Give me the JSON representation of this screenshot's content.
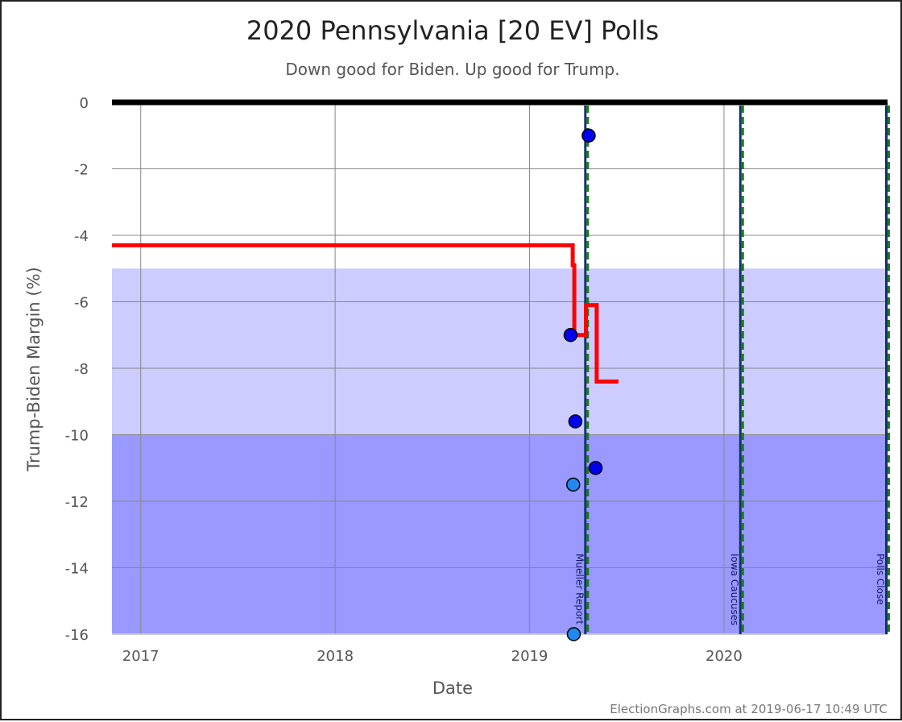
{
  "chart_data": {
    "type": "scatter",
    "title": "2020 Pennsylvania [20 EV] Polls",
    "subtitle": "Down good for Biden. Up good for Trump.",
    "xlabel": "Date",
    "ylabel": "Trump-Biden Margin (%)",
    "credit": "ElectionGraphs.com at 2019-06-17 10:49 UTC",
    "xlim": [
      "2016-11-08",
      "2020-11-03"
    ],
    "ylim": [
      -16,
      0
    ],
    "x_ticks": [
      {
        "label": "2017",
        "date": "2017-01-01"
      },
      {
        "label": "2018",
        "date": "2018-01-01"
      },
      {
        "label": "2019",
        "date": "2019-01-01"
      },
      {
        "label": "2020",
        "date": "2020-01-01"
      }
    ],
    "y_ticks": [
      0,
      -2,
      -4,
      -6,
      -8,
      -10,
      -12,
      -14,
      -16
    ],
    "y_tick_labels": [
      "0",
      "-2",
      "-4",
      "-6",
      "-8",
      "-10",
      "-12",
      "-14",
      "-16"
    ],
    "bands": [
      {
        "from": -10,
        "to": -5,
        "color": "#ccccff"
      },
      {
        "from": -16,
        "to": -10,
        "color": "#9999ff"
      }
    ],
    "events": [
      {
        "label": "Mueller Report",
        "date": "2019-04-18"
      },
      {
        "label": "Iowa Caucuses",
        "date": "2020-02-03"
      },
      {
        "label": "Polls Close",
        "date": "2020-11-03"
      }
    ],
    "average_line": {
      "color": "#ff0000",
      "points": [
        [
          "2016-11-08",
          -4.3
        ],
        [
          "2019-03-23",
          -4.3
        ],
        [
          "2019-03-23",
          -4.9
        ],
        [
          "2019-03-26",
          -4.9
        ],
        [
          "2019-03-26",
          -7.0
        ],
        [
          "2019-04-17",
          -7.0
        ],
        [
          "2019-04-17",
          -6.1
        ],
        [
          "2019-05-07",
          -6.1
        ],
        [
          "2019-05-07",
          -8.4
        ],
        [
          "2019-06-17",
          -8.4
        ]
      ]
    },
    "series": [
      {
        "color": "#0000ee",
        "points": [
          {
            "x": "2019-04-22",
            "y": -1
          },
          {
            "x": "2019-03-19",
            "y": -7
          },
          {
            "x": "2019-03-28",
            "y": -9.6
          },
          {
            "x": "2019-05-05",
            "y": -11
          }
        ]
      },
      {
        "color": "#2288ee",
        "points": [
          {
            "x": "2019-03-24",
            "y": -11.5
          },
          {
            "x": "2019-03-25",
            "y": -16
          }
        ]
      }
    ]
  }
}
